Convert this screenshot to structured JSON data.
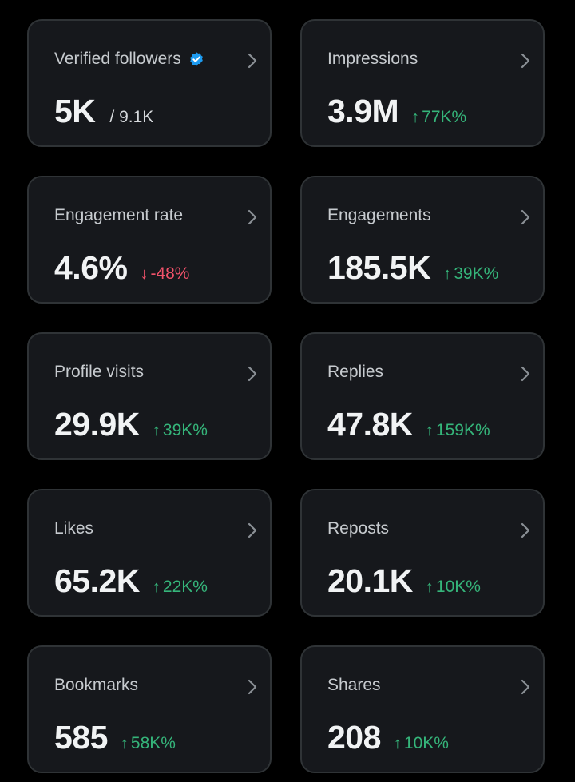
{
  "colors": {
    "background": "#000000",
    "card": "#16181c",
    "card_border": "#2f3336",
    "positive": "#35b57a",
    "negative": "#f0526a",
    "verified": "#1d9bf0"
  },
  "cards": [
    {
      "title": "Verified followers",
      "icon": "verified-badge-icon",
      "value": "5K",
      "sub": "/ 9.1K"
    },
    {
      "title": "Impressions",
      "value": "3.9M",
      "arrow": "↑",
      "delta": "77K%",
      "trend": "up"
    },
    {
      "title": "Engagement rate",
      "value": "4.6%",
      "arrow": "↓",
      "delta": "-48%",
      "trend": "down"
    },
    {
      "title": "Engagements",
      "value": "185.5K",
      "arrow": "↑",
      "delta": "39K%",
      "trend": "up"
    },
    {
      "title": "Profile visits",
      "value": "29.9K",
      "arrow": "↑",
      "delta": "39K%",
      "trend": "up"
    },
    {
      "title": "Replies",
      "value": "47.8K",
      "arrow": "↑",
      "delta": "159K%",
      "trend": "up"
    },
    {
      "title": "Likes",
      "value": "65.2K",
      "arrow": "↑",
      "delta": "22K%",
      "trend": "up"
    },
    {
      "title": "Reposts",
      "value": "20.1K",
      "arrow": "↑",
      "delta": "10K%",
      "trend": "up"
    },
    {
      "title": "Bookmarks",
      "value": "585",
      "arrow": "↑",
      "delta": "58K%",
      "trend": "up"
    },
    {
      "title": "Shares",
      "value": "208",
      "arrow": "↑",
      "delta": "10K%",
      "trend": "up"
    }
  ]
}
